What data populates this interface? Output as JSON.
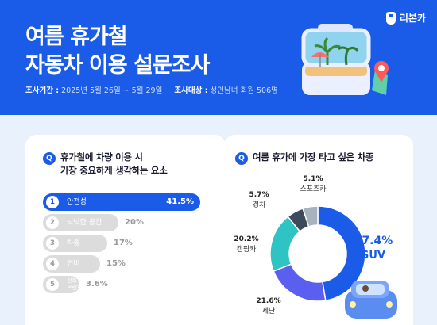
{
  "header": {
    "title_line1": "여름 휴가철",
    "title_line2": "자동차 이용 설문조사",
    "period_label": "조사기간 :",
    "period_value": "2025년 5월 26일 ~ 5월 29일",
    "target_label": "조사대상 :",
    "target_value": "성인남녀 회원 506명",
    "brand": "리본카"
  },
  "colors": {
    "primary": "#1a5be8",
    "header_bg": "#1a5be8",
    "page_bg": "#e9f1fc",
    "bar_gray": "#dcdcdc",
    "donut": [
      "#1a5be8",
      "#5b5ff0",
      "#2ec4c4",
      "#3d4a5c",
      "#a8b2bf"
    ]
  },
  "left_card": {
    "badge": "Q",
    "question_line1": "휴가철에 차량 이용 시",
    "question_line2": "가장 중요하게 생각하는 요소"
  },
  "right_card": {
    "badge": "Q",
    "question": "여름 휴가에 가장 타고 싶은 차종"
  },
  "chart_data": [
    {
      "type": "bar",
      "orientation": "horizontal",
      "title": "휴가철에 차량 이용 시 가장 중요하게 생각하는 요소",
      "categories": [
        "안전성",
        "넉넉한 공간",
        "차종",
        "연비",
        "선호 브랜드"
      ],
      "ranks": [
        "1",
        "2",
        "3",
        "4",
        "5"
      ],
      "values": [
        41.5,
        20,
        17,
        15,
        3.6
      ],
      "value_labels": [
        "41.5%",
        "20%",
        "17%",
        "15%",
        "3.6%"
      ],
      "unit": "%"
    },
    {
      "type": "pie",
      "title": "여름 휴가에 가장 타고 싶은 차종",
      "categories": [
        "SUV",
        "세단",
        "캠핑카",
        "경차",
        "스포츠카"
      ],
      "values": [
        47.4,
        21.6,
        20.2,
        5.7,
        5.1
      ],
      "value_labels": [
        "47.4%",
        "21.6%",
        "20.2%",
        "5.7%",
        "5.1%"
      ],
      "unit": "%"
    }
  ]
}
